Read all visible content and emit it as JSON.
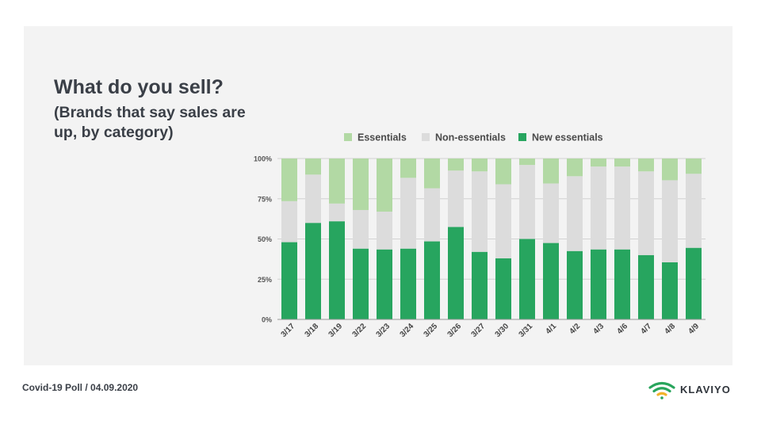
{
  "title": "What do you sell?",
  "subtitle": "(Brands that say sales are up, by category)",
  "footer": {
    "poll": "Covid-19 Poll",
    "separator": "/",
    "date": "04.09.2020"
  },
  "brand": {
    "name": "KLAVIYO",
    "mark": "wifi-signal-logo",
    "color": "#28a55c"
  },
  "colors": {
    "essentials": "#b2d9a4",
    "non_essentials": "#dcdcdc",
    "new_essentials": "#27a55f"
  },
  "chart_data": {
    "type": "bar",
    "stacked": true,
    "categories": [
      "3/17",
      "3/18",
      "3/19",
      "3/22",
      "3/23",
      "3/24",
      "3/25",
      "3/26",
      "3/27",
      "3/30",
      "3/31",
      "4/1",
      "4/2",
      "4/3",
      "4/6",
      "4/7",
      "4/8",
      "4/9"
    ],
    "series": [
      {
        "name": "New essentials",
        "color": "#27a55f",
        "values": [
          48,
          60,
          61,
          44,
          43.5,
          44,
          48.5,
          57.5,
          42,
          38,
          50,
          47.5,
          42.5,
          43.5,
          43.5,
          40,
          35.5,
          44.5
        ]
      },
      {
        "name": "Non-essentials",
        "color": "#dcdcdc",
        "values": [
          25.5,
          30,
          11,
          24,
          23.5,
          44,
          33,
          35,
          50,
          46,
          46,
          37,
          46.5,
          51.5,
          51.5,
          52,
          51,
          46
        ]
      },
      {
        "name": "Essentials",
        "color": "#b2d9a4",
        "values": [
          26.5,
          10,
          28,
          32,
          33,
          12,
          18.5,
          7.5,
          8,
          16,
          4,
          15.5,
          11,
          5,
          5,
          8,
          13.5,
          9.5
        ]
      }
    ],
    "legend_order": [
      "Essentials",
      "Non-essentials",
      "New essentials"
    ],
    "legend_position": "top",
    "yticks": [
      "0%",
      "25%",
      "50%",
      "75%",
      "100%"
    ],
    "ylim": [
      0,
      100
    ],
    "grid": true
  }
}
